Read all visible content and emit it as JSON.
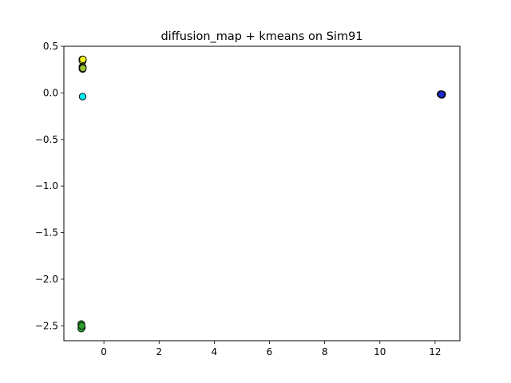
{
  "chart_data": {
    "type": "scatter",
    "title": "diffusion_map + kmeans on Sim91",
    "xlabel": "",
    "ylabel": "",
    "xlim": [
      -1.45,
      12.9
    ],
    "ylim": [
      -2.66,
      0.5
    ],
    "xticks": [
      0,
      2,
      4,
      6,
      8,
      10,
      12
    ],
    "yticks": [
      0.5,
      0.0,
      -0.5,
      -1.0,
      -1.5,
      -2.0,
      -2.5
    ],
    "xtick_labels": [
      "0",
      "2",
      "4",
      "6",
      "8",
      "10",
      "12"
    ],
    "ytick_labels": [
      "0.5",
      "0.0",
      "−0.5",
      "−1.0",
      "−1.5",
      "−2.0",
      "−2.5"
    ],
    "grid": false,
    "legend": "none",
    "series": [
      {
        "color": "#f0f020",
        "points": [
          {
            "x": -0.78,
            "y": 0.36
          },
          {
            "x": -0.77,
            "y": 0.355
          },
          {
            "x": -0.76,
            "y": 0.35
          },
          {
            "x": -0.77,
            "y": 0.34
          },
          {
            "x": -0.78,
            "y": 0.345
          },
          {
            "x": -0.76,
            "y": 0.36
          }
        ]
      },
      {
        "color": "#9dc238",
        "points": [
          {
            "x": -0.78,
            "y": 0.28
          },
          {
            "x": -0.77,
            "y": 0.27
          },
          {
            "x": -0.76,
            "y": 0.275
          },
          {
            "x": -0.78,
            "y": 0.26
          },
          {
            "x": -0.77,
            "y": 0.255
          },
          {
            "x": -0.76,
            "y": 0.265
          }
        ]
      },
      {
        "color": "#00e5ee",
        "points": [
          {
            "x": -0.77,
            "y": -0.04
          }
        ]
      },
      {
        "color": "#2ca02c",
        "points": [
          {
            "x": -0.82,
            "y": -2.48
          },
          {
            "x": -0.81,
            "y": -2.51
          },
          {
            "x": -0.8,
            "y": -2.52
          },
          {
            "x": -0.82,
            "y": -2.53
          },
          {
            "x": -0.8,
            "y": -2.5
          }
        ]
      },
      {
        "color": "#1f2bd0",
        "points": [
          {
            "x": 12.2,
            "y": -0.015
          },
          {
            "x": 12.22,
            "y": -0.02
          },
          {
            "x": 12.24,
            "y": -0.018
          },
          {
            "x": 12.26,
            "y": -0.015
          },
          {
            "x": 12.21,
            "y": -0.012
          },
          {
            "x": 12.25,
            "y": -0.022
          },
          {
            "x": 12.23,
            "y": -0.016
          }
        ]
      }
    ]
  }
}
